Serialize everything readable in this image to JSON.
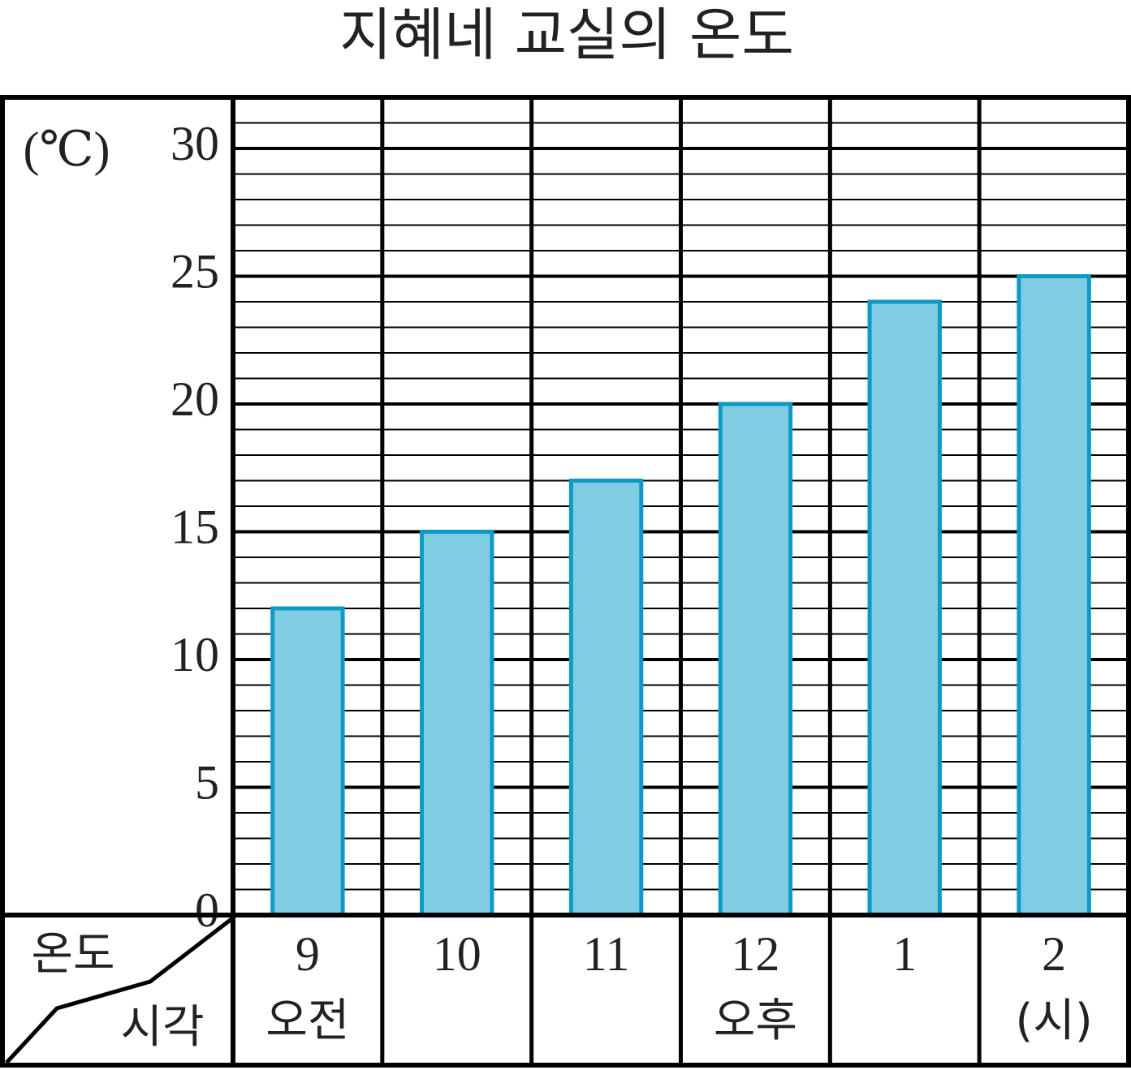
{
  "chart_data": {
    "type": "bar",
    "title": "지혜네 교실의 온도",
    "y_unit": "(℃)",
    "x_unit": "(시)",
    "value_header": "온도",
    "category_header": "시각",
    "categories": [
      "9",
      "10",
      "11",
      "12",
      "1",
      "2"
    ],
    "period_labels": [
      "오전",
      null,
      null,
      "오후",
      null,
      null
    ],
    "values": [
      12,
      15,
      17,
      20,
      24,
      25
    ],
    "color": "#7fcde3",
    "edge_color": "#0f9ac6",
    "ylim": [
      0,
      32
    ],
    "yticks": [
      0,
      5,
      10,
      15,
      20,
      25,
      30
    ],
    "grid": true,
    "minor_grid_step": 1
  }
}
